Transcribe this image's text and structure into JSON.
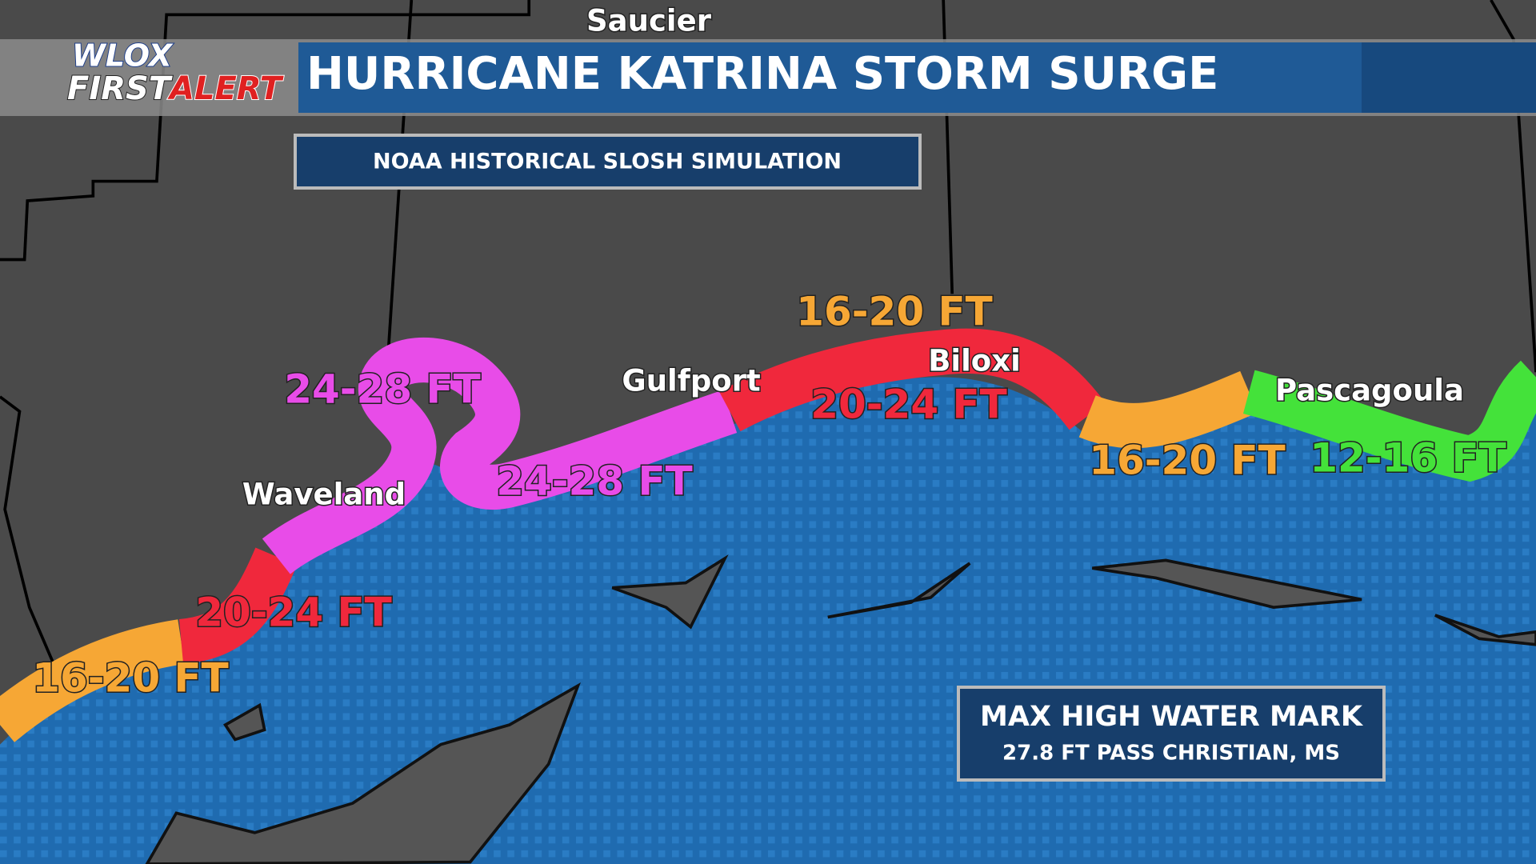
{
  "header": {
    "logo_top": "WLOX",
    "logo_first": "FIRST",
    "logo_alert": "ALERT",
    "title": "HURRICANE KATRINA STORM SURGE"
  },
  "subtitle": "NOAA HISTORICAL SLOSH SIMULATION",
  "cities": [
    "Saucier",
    "Waveland",
    "Gulfport",
    "Biloxi",
    "Pascagoula"
  ],
  "surge_labels": [
    "16-20 FT",
    "24-28 FT",
    "20-24 FT",
    "24-28 FT",
    "16-20 FT",
    "12-16 FT",
    "20-24 FT",
    "16-20 FT"
  ],
  "max_box": {
    "title": "MAX HIGH WATER MARK",
    "detail": "27.8 FT PASS CHRISTIAN, MS"
  }
}
